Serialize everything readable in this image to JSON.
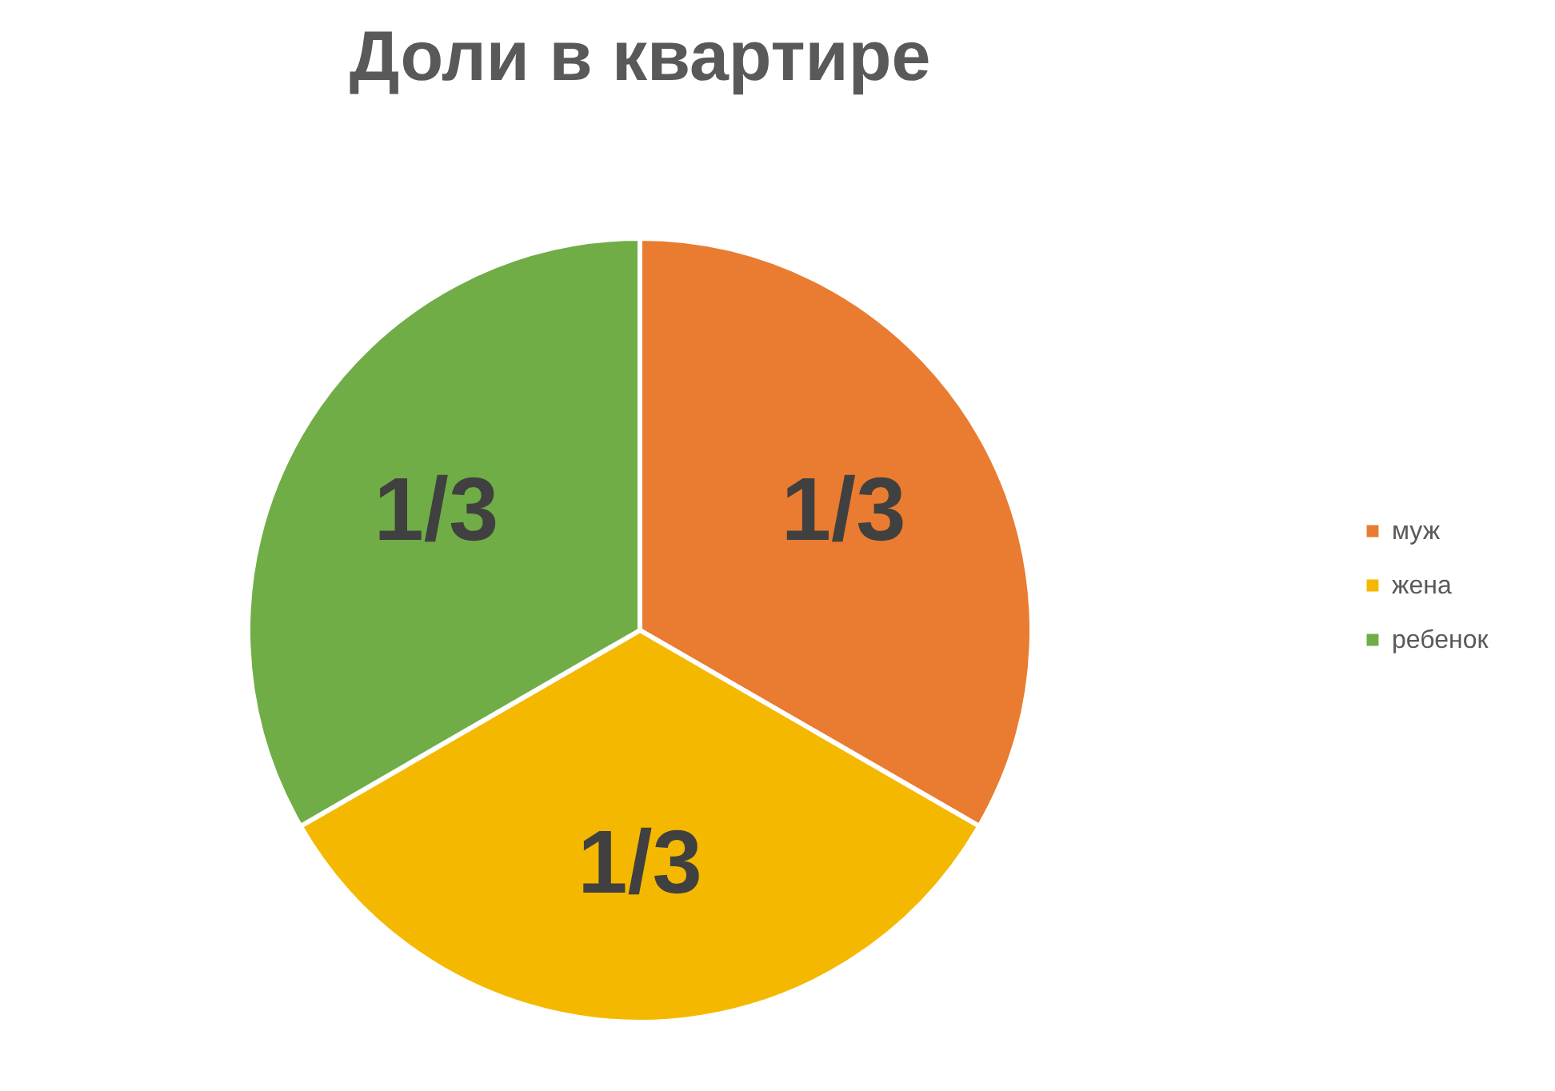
{
  "chart_data": {
    "type": "pie",
    "title": "Доли в квартире",
    "categories": [
      "муж",
      "жена",
      "ребенок"
    ],
    "values": [
      0.3333,
      0.3333,
      0.3333
    ],
    "value_labels": [
      "1/3",
      "1/3",
      "1/3"
    ],
    "colors": [
      "#e97c30",
      "#f5b800",
      "#70ad47"
    ],
    "legend": "right"
  }
}
